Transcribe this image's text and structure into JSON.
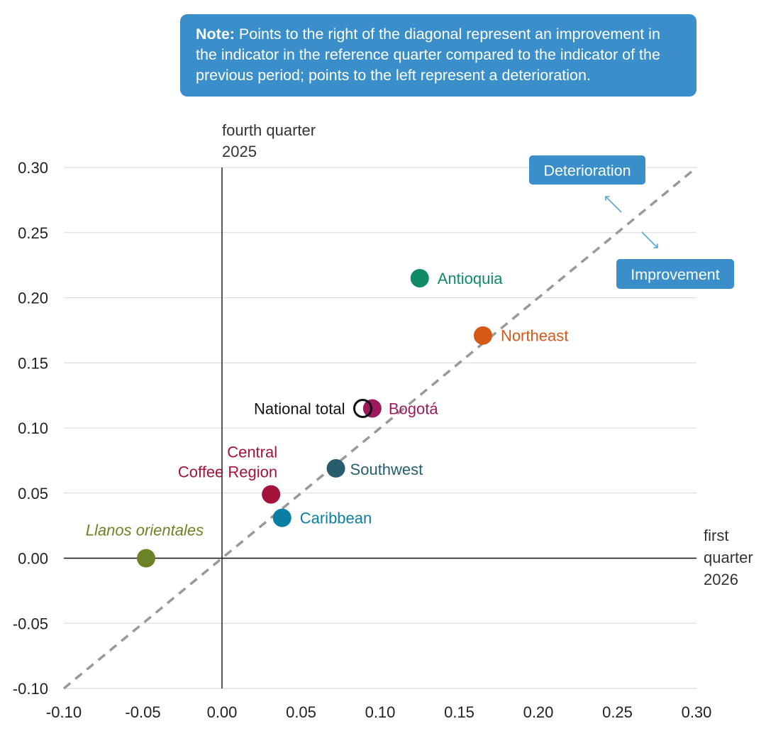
{
  "note": {
    "bold": "Note:",
    "text": " Points to the right of the diagonal represent an improvement in the indicator in the reference quarter compared to the indicator of the previous period; points to the left represent a deterioration."
  },
  "chart_data": {
    "type": "scatter",
    "title": "",
    "xlabel": [
      "first",
      "quarter",
      "2026"
    ],
    "ylabel": [
      "fourth quarter",
      "2025"
    ],
    "xlim": [
      -0.1,
      0.3
    ],
    "ylim": [
      -0.1,
      0.3
    ],
    "x_ticks": [
      "-0.10",
      "-0.05",
      "0.00",
      "0.05",
      "0.10",
      "0.15",
      "0.20",
      "0.25",
      "0.30"
    ],
    "y_ticks": [
      "-0.10",
      "-0.05",
      "0.00",
      "0.05",
      "0.10",
      "0.15",
      "0.20",
      "0.25",
      "0.30"
    ],
    "grid": true,
    "diagonal": true,
    "legend_boxes": {
      "deterioration": "Deterioration",
      "improvement": "Improvement"
    },
    "points": [
      {
        "name": "Antioquia",
        "x": 0.125,
        "y": 0.215,
        "color": "#0f8a66",
        "filled": true,
        "italic": false
      },
      {
        "name": "Northeast",
        "x": 0.165,
        "y": 0.171,
        "color": "#d65a17",
        "filled": true,
        "italic": false
      },
      {
        "name": "National total",
        "x": 0.089,
        "y": 0.115,
        "color": "#111111",
        "filled": false,
        "italic": false
      },
      {
        "name": "Bogotá",
        "x": 0.095,
        "y": 0.115,
        "color": "#9c1a5b",
        "filled": true,
        "italic": false
      },
      {
        "name": "Southwest",
        "x": 0.072,
        "y": 0.069,
        "color": "#265e6e",
        "filled": true,
        "italic": false
      },
      {
        "name": "Central\nCoffee Region",
        "x": 0.031,
        "y": 0.049,
        "color": "#a3133a",
        "filled": true,
        "italic": false
      },
      {
        "name": "Caribbean",
        "x": 0.038,
        "y": 0.031,
        "color": "#0a7ea3",
        "filled": true,
        "italic": false
      },
      {
        "name": "Llanos orientales",
        "x": -0.048,
        "y": 0.0,
        "color": "#6b8326",
        "filled": true,
        "italic": true
      }
    ]
  }
}
